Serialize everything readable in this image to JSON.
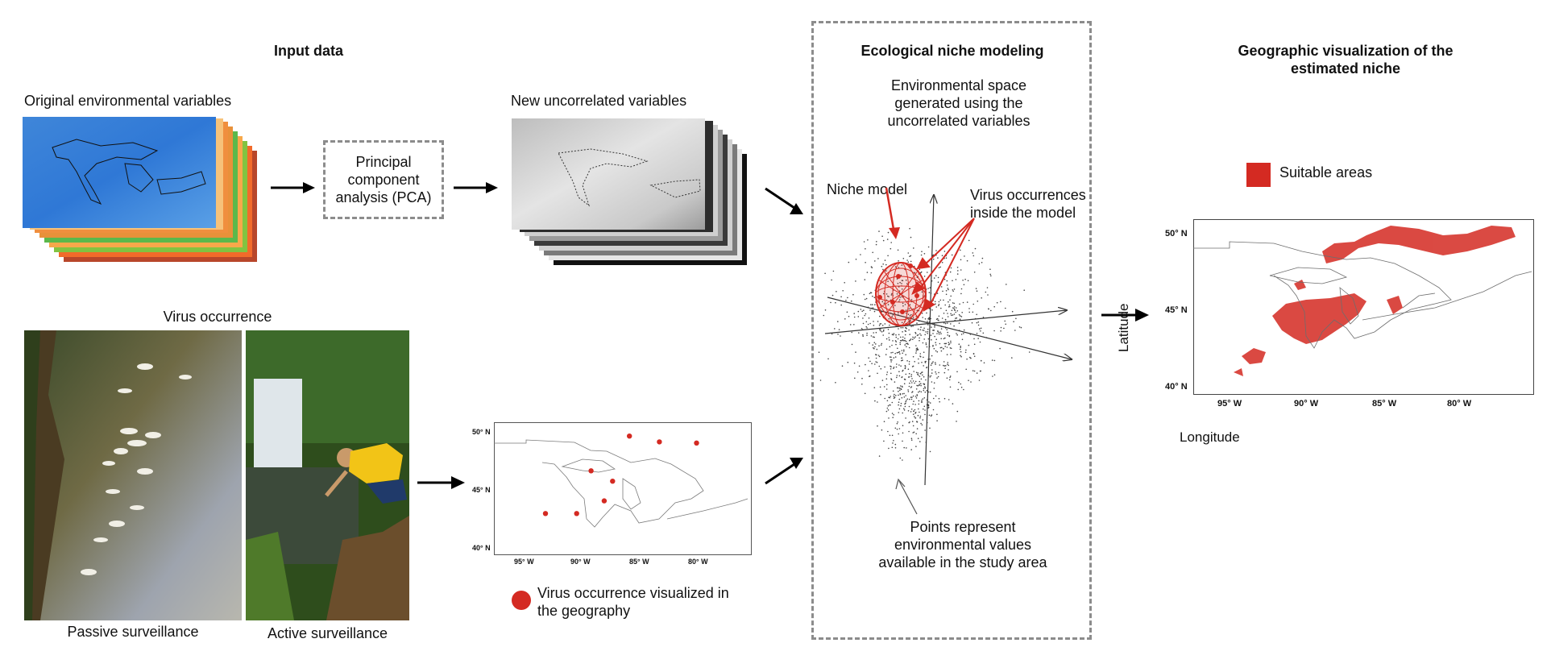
{
  "input": {
    "title": "Input data",
    "env_label": "Original environmental variables",
    "pca_label": "Principal component analysis (PCA)",
    "uncorr_label": "New uncorrelated variables",
    "virus_title": "Virus occurrence",
    "passive_label": "Passive surveillance",
    "active_label": "Active surveillance"
  },
  "occurrence_map": {
    "lat_ticks": [
      "50° N",
      "45° N",
      "40° N"
    ],
    "lon_ticks": [
      "95° W",
      "90° W",
      "85° W",
      "80° W"
    ],
    "legend": "Virus occurrence visualized in the geography",
    "legend_color": "#d42a22",
    "points": [
      {
        "lon": -93.2,
        "lat": 43.1
      },
      {
        "lon": -90.6,
        "lat": 43.1
      },
      {
        "lon": -89.4,
        "lat": 46.8
      },
      {
        "lon": -88.3,
        "lat": 44.2
      },
      {
        "lon": -87.6,
        "lat": 45.9
      },
      {
        "lon": -86.2,
        "lat": 49.8
      },
      {
        "lon": -83.7,
        "lat": 49.3
      },
      {
        "lon": -80.6,
        "lat": 49.2
      }
    ]
  },
  "enm": {
    "title": "Ecological niche modeling",
    "env_space_label": "Environmental space generated using the uncorrelated variables",
    "niche_model_label": "Niche model",
    "virus_inside_label": "Virus occurrences inside the model",
    "points_label": "Points represent environmental values available in the study area",
    "model_color": "#d42a22"
  },
  "geo": {
    "title": "Geographic visualization of the estimated niche",
    "legend": "Suitable areas",
    "legend_color": "#d42a22",
    "ylabel": "Latitude",
    "xlabel": "Longitude",
    "lat_ticks": [
      "50° N",
      "45° N",
      "40° N"
    ],
    "lon_ticks": [
      "95° W",
      "90° W",
      "85° W",
      "80° W"
    ]
  }
}
